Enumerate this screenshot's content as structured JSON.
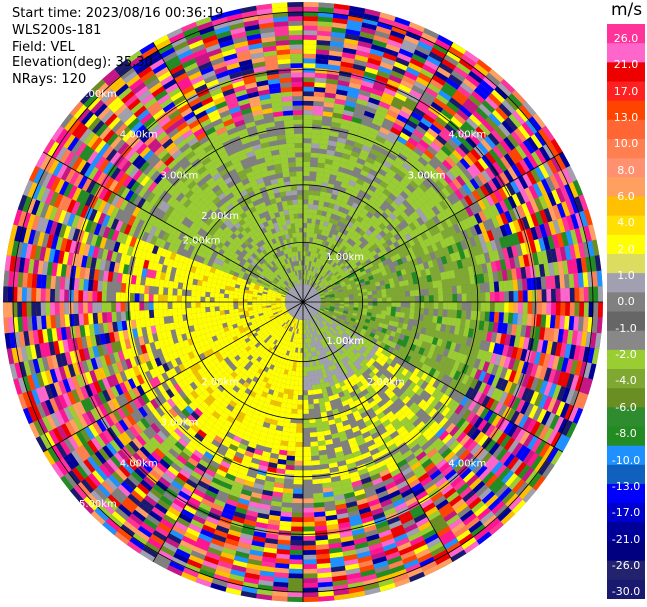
{
  "info": {
    "start_time": "Start time: 2023/08/16 00:36:19",
    "instrument": "WLS200s-181",
    "field": "Field: VEL",
    "elevation": "Elevation(deg): 35.30",
    "nrays": "NRays: 120"
  },
  "colorbar": {
    "unit": "m/s",
    "ticks": [
      "26.0",
      "21.0",
      "17.0",
      "13.0",
      "10.0",
      "8.0",
      "6.0",
      "4.0",
      "2.0",
      "1.0",
      "0.0",
      "-1.0",
      "-2.0",
      "-4.0",
      "-6.0",
      "-8.0",
      "-10.0",
      "-13.0",
      "-17.0",
      "-21.0",
      "-26.0",
      "-30.0"
    ],
    "colors": [
      "#ff3399",
      "#ff66cc",
      "#ee0000",
      "#ff2020",
      "#ff4400",
      "#ff6633",
      "#ff7f50",
      "#ff9070",
      "#ffa060",
      "#ffc000",
      "#ffe000",
      "#ffff00",
      "#dcdc60",
      "#a0a0b0",
      "#808080",
      "#666666",
      "#888888",
      "#9acd32",
      "#7ea832",
      "#6b8e23",
      "#2e8b2e",
      "#228b22",
      "#1e90ff",
      "#1060c0",
      "#0000ff",
      "#0000cc",
      "#000099",
      "#000080",
      "#22226e",
      "#191970"
    ]
  },
  "chart_data": {
    "type": "ppi",
    "field": "VEL",
    "units": "m/s",
    "nrays": 120,
    "range_labels_km": [
      "1.00km",
      "2.00km",
      "3.00km",
      "4.00km",
      "5.00km"
    ],
    "range_labels_full": [
      {
        "text": "1.00km"
      },
      {
        "text": "2.00km"
      },
      {
        "text": "3.00km"
      },
      {
        "text": "4.00km"
      },
      {
        "text": "5.00km"
      },
      {
        "text": "1.00km"
      },
      {
        "text": "2.00km"
      },
      {
        "text": "3.00km"
      },
      {
        "text": "4.00km"
      },
      {
        "text": "1.00km"
      },
      {
        "text": "2.00km"
      },
      {
        "text": "3.00km"
      },
      {
        "text": "4.00km"
      },
      {
        "text": "2.00km"
      },
      {
        "text": "3.00km"
      },
      {
        "text": "4.00km"
      },
      {
        "text": "5.00km"
      }
    ],
    "range_rings_km": [
      1,
      2,
      3,
      4,
      5
    ],
    "spokes_deg": [
      0,
      30,
      60,
      90,
      120,
      150,
      180,
      210,
      240,
      270,
      300,
      330
    ],
    "near_field_pattern": {
      "north_sector": "green (-2 to -4 m/s) with grey",
      "south_west_sector": "yellow (2 m/s)",
      "east_sector": "olive/green",
      "outer_range": "noise (random colors)"
    }
  }
}
